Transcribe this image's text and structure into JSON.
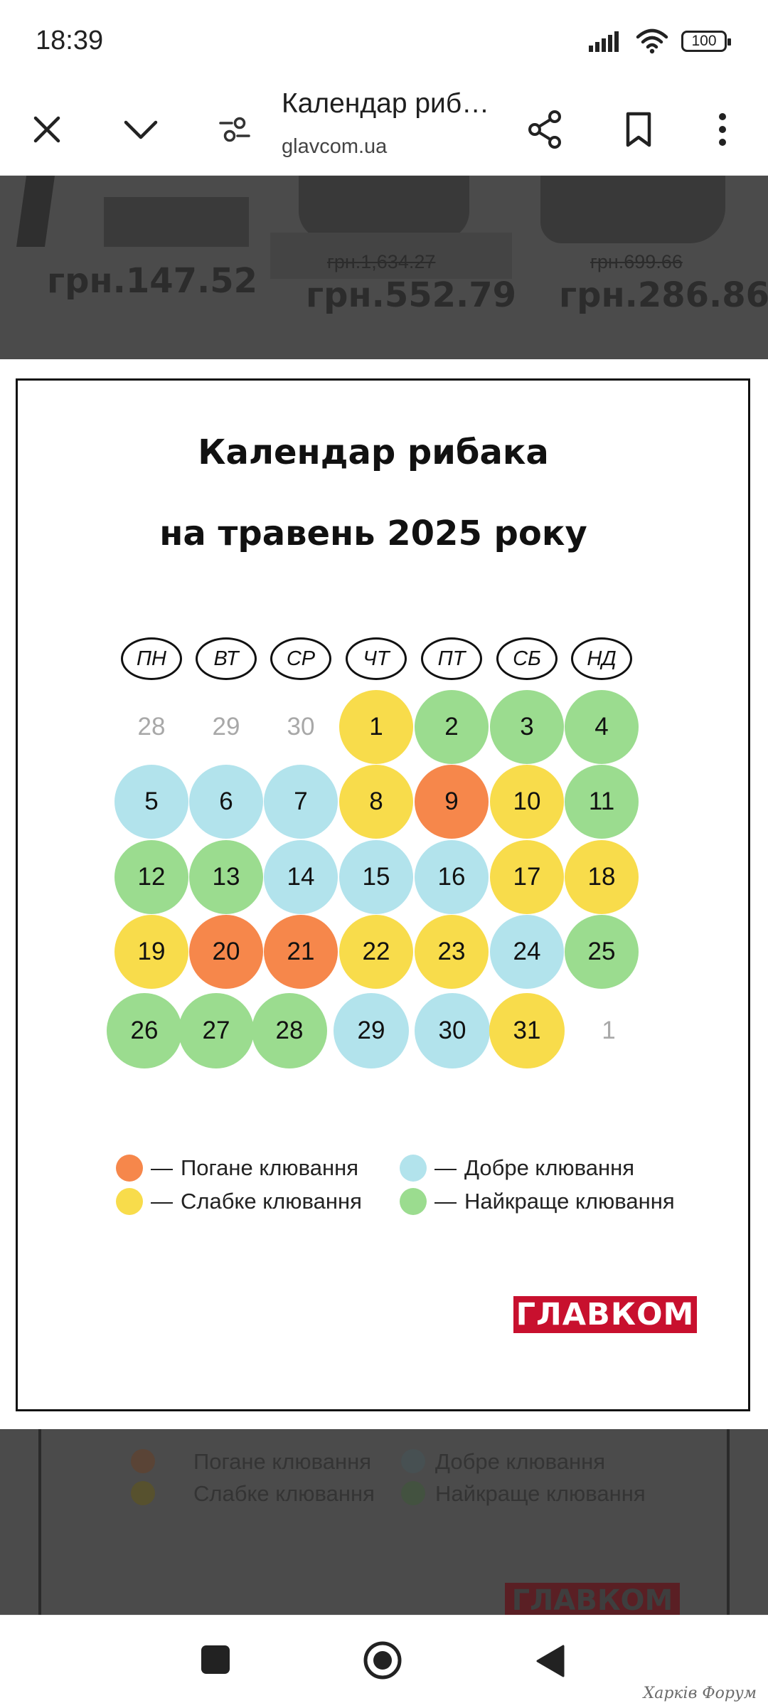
{
  "status_bar": {
    "time": "18:39",
    "battery": "100"
  },
  "toolbar": {
    "title": "Календар риб…",
    "url": "glavcom.ua"
  },
  "background_page": {
    "products": [
      {
        "price": "грн.147.52",
        "old_price": ""
      },
      {
        "price": "грн.552.79",
        "old_price": "грн.1,634.27"
      },
      {
        "price": "грн.286.86",
        "old_price": "грн.699.66"
      }
    ],
    "legend": [
      "Погане клювання",
      "Добре клювання",
      "Слабке клювання",
      "Найкраще клювання"
    ],
    "logo": "ГЛАВКОМ"
  },
  "calendar": {
    "title_line1": "Календар рибака",
    "title_line2": "на травень 2025 року",
    "weekdays": [
      "ПН",
      "ВТ",
      "СР",
      "ЧТ",
      "ПТ",
      "СБ",
      "НД"
    ],
    "colors": {
      "bad": "#f6874b",
      "weak": "#f8dc4b",
      "good": "#b2e3ec",
      "best": "#9bdc8f"
    },
    "weeks": [
      [
        {
          "d": "28",
          "s": "none"
        },
        {
          "d": "29",
          "s": "none"
        },
        {
          "d": "30",
          "s": "none"
        },
        {
          "d": "1",
          "s": "weak"
        },
        {
          "d": "2",
          "s": "best"
        },
        {
          "d": "3",
          "s": "best"
        },
        {
          "d": "4",
          "s": "best"
        }
      ],
      [
        {
          "d": "5",
          "s": "good"
        },
        {
          "d": "6",
          "s": "good"
        },
        {
          "d": "7",
          "s": "good"
        },
        {
          "d": "8",
          "s": "weak"
        },
        {
          "d": "9",
          "s": "bad"
        },
        {
          "d": "10",
          "s": "weak"
        },
        {
          "d": "11",
          "s": "best"
        }
      ],
      [
        {
          "d": "12",
          "s": "best"
        },
        {
          "d": "13",
          "s": "best"
        },
        {
          "d": "14",
          "s": "good"
        },
        {
          "d": "15",
          "s": "good"
        },
        {
          "d": "16",
          "s": "good"
        },
        {
          "d": "17",
          "s": "weak"
        },
        {
          "d": "18",
          "s": "weak"
        }
      ],
      [
        {
          "d": "19",
          "s": "weak"
        },
        {
          "d": "20",
          "s": "bad"
        },
        {
          "d": "21",
          "s": "bad"
        },
        {
          "d": "22",
          "s": "weak"
        },
        {
          "d": "23",
          "s": "weak"
        },
        {
          "d": "24",
          "s": "good"
        },
        {
          "d": "25",
          "s": "best"
        }
      ],
      [
        {
          "d": "26",
          "s": "best"
        },
        {
          "d": "27",
          "s": "best"
        },
        {
          "d": "28",
          "s": "best"
        },
        {
          "d": "29",
          "s": "good"
        },
        {
          "d": "30",
          "s": "good"
        },
        {
          "d": "31",
          "s": "weak"
        },
        {
          "d": "1",
          "s": "none"
        }
      ]
    ],
    "legend": [
      {
        "status": "bad",
        "label": "Погане клювання"
      },
      {
        "status": "good",
        "label": "Добре клювання"
      },
      {
        "status": "weak",
        "label": "Слабке клювання"
      },
      {
        "status": "best",
        "label": "Найкраще клювання"
      }
    ],
    "legend_dash": "—",
    "logo": "ГЛАВКОМ"
  },
  "watermark": "Харків Форум",
  "icons": [
    "close-icon",
    "chevron-down-icon",
    "tune-icon",
    "share-icon",
    "bookmark-icon",
    "more-vert-icon",
    "signal-icon",
    "wifi-icon",
    "square-nav-icon",
    "home-nav-icon",
    "back-nav-icon"
  ]
}
